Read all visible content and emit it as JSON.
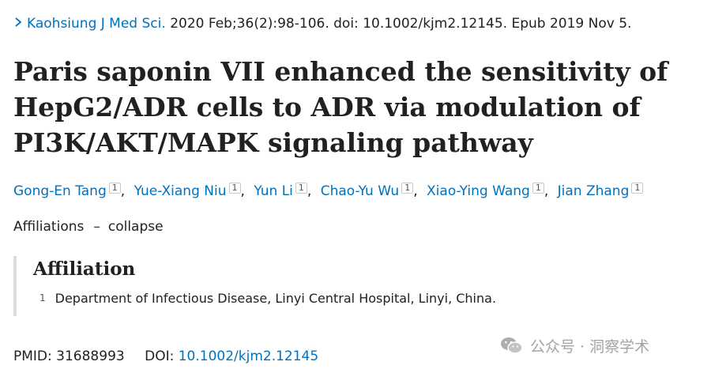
{
  "citation": {
    "journal": "Kaohsiung J Med Sci.",
    "details": "2020 Feb;36(2):98-106. doi: 10.1002/kjm2.12145. Epub 2019 Nov 5."
  },
  "title": "Paris saponin VII enhanced the sensitivity of HepG2/ADR cells to ADR via modulation of PI3K/AKT/MAPK signaling pathway",
  "authors": [
    {
      "name": "Gong-En Tang",
      "affiliation": "1"
    },
    {
      "name": "Yue-Xiang Niu",
      "affiliation": "1"
    },
    {
      "name": "Yun Li",
      "affiliation": "1"
    },
    {
      "name": "Chao-Yu Wu",
      "affiliation": "1"
    },
    {
      "name": "Xiao-Ying Wang",
      "affiliation": "1"
    },
    {
      "name": "Jian Zhang",
      "affiliation": "1"
    }
  ],
  "affiliations_toggle": {
    "label": "Affiliations",
    "dash": "–",
    "action": "collapse"
  },
  "affiliation_box": {
    "heading": "Affiliation",
    "items": [
      {
        "number": "1",
        "text": "Department of Infectious Disease, Linyi Central Hospital, Linyi, China."
      }
    ]
  },
  "identifiers": {
    "pmid_label": "PMID:",
    "pmid": "31688993",
    "doi_label": "DOI:",
    "doi": "10.1002/kjm2.12145"
  },
  "watermark": {
    "text": "公众号 · 洞察学术"
  },
  "colors": {
    "link": "#0071bc",
    "text": "#212121"
  }
}
